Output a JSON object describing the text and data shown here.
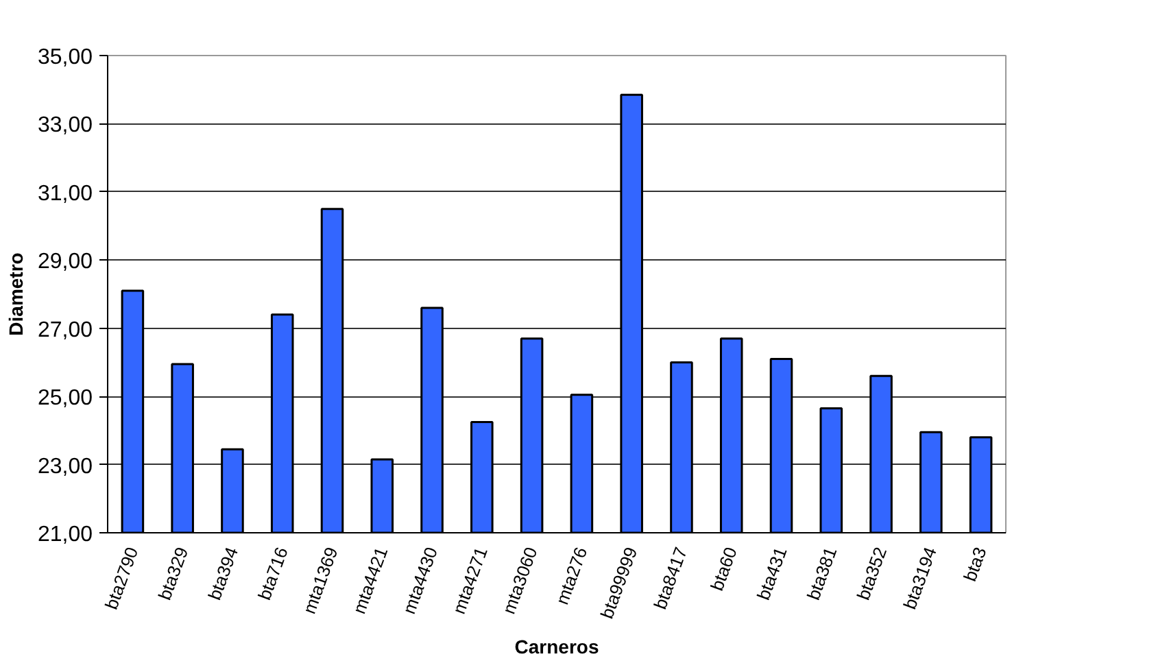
{
  "chart_data": {
    "type": "bar",
    "xlabel": "Carneros",
    "ylabel": "Diametro",
    "categories": [
      "bta2790",
      "bta329",
      "bta394",
      "bta716",
      "mta1369",
      "mta4421",
      "mta4430",
      "mta4271",
      "mta3060",
      "mta276",
      "bta99999",
      "bta8417",
      "bta60",
      "bta431",
      "bta381",
      "bta352",
      "bta3194",
      "bta3"
    ],
    "values": [
      28.1,
      25.95,
      23.45,
      27.4,
      30.5,
      23.15,
      27.6,
      24.25,
      26.7,
      25.05,
      33.85,
      26.0,
      26.7,
      26.1,
      24.65,
      25.6,
      23.95,
      23.8
    ],
    "color": "#3366ff",
    "ylim": [
      21,
      35
    ],
    "yticks": [
      {
        "value": 21,
        "label": "21,00"
      },
      {
        "value": 23,
        "label": "23,00"
      },
      {
        "value": 25,
        "label": "25,00"
      },
      {
        "value": 27,
        "label": "27,00"
      },
      {
        "value": 29,
        "label": "29,00"
      },
      {
        "value": 31,
        "label": "31,00"
      },
      {
        "value": 33,
        "label": "33,00"
      },
      {
        "value": 35,
        "label": "35,00"
      }
    ],
    "grid": "y"
  }
}
